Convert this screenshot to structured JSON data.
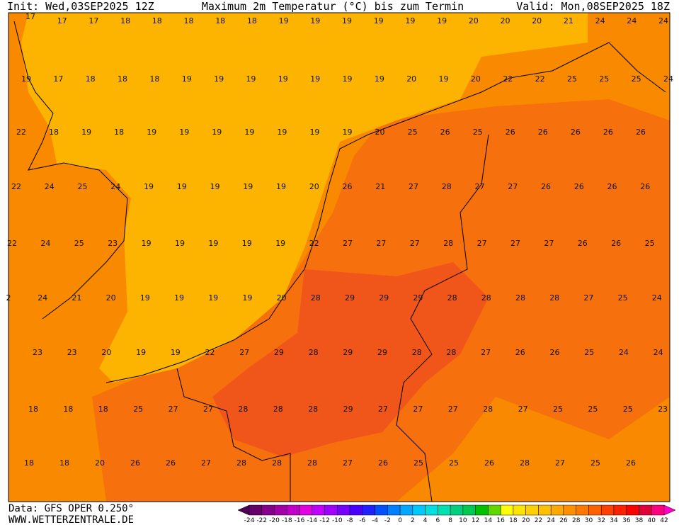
{
  "header": {
    "init": "Init: Wed,03SEP2025 12Z",
    "title": "Maximum 2m Temperatur (°C) bis zum Termin",
    "valid": "Valid: Mon,08SEP2025 18Z"
  },
  "grid": [
    [
      17,
      17,
      17,
      18,
      18,
      18,
      18,
      18,
      19,
      19,
      19,
      19,
      19,
      19,
      20,
      20,
      20,
      21,
      24,
      24,
      24
    ],
    [
      19,
      17,
      18,
      18,
      18,
      19,
      19,
      19,
      19,
      19,
      19,
      19,
      20,
      19,
      20,
      22,
      22,
      25,
      25,
      25,
      24
    ],
    [
      22,
      18,
      19,
      18,
      19,
      19,
      19,
      19,
      19,
      19,
      19,
      20,
      25,
      26,
      25,
      26,
      26,
      26,
      26,
      26
    ],
    [
      22,
      24,
      25,
      24,
      19,
      19,
      19,
      19,
      19,
      20,
      26,
      21,
      27,
      28,
      27,
      27,
      26,
      26,
      26,
      26
    ],
    [
      22,
      24,
      25,
      23,
      19,
      19,
      19,
      19,
      19,
      22,
      27,
      27,
      27,
      28,
      27,
      27,
      27,
      26,
      26,
      25
    ],
    [
      2,
      24,
      21,
      20,
      19,
      19,
      19,
      19,
      20,
      28,
      29,
      29,
      29,
      28,
      28,
      28,
      28,
      27,
      25,
      24
    ],
    [
      23,
      23,
      20,
      19,
      19,
      22,
      27,
      29,
      28,
      29,
      29,
      28,
      28,
      27,
      26,
      26,
      25,
      24,
      24
    ],
    [
      18,
      18,
      18,
      25,
      27,
      27,
      28,
      28,
      28,
      29,
      27,
      27,
      27,
      28,
      27,
      25,
      25,
      25,
      23
    ],
    [
      18,
      18,
      20,
      26,
      26,
      27,
      28,
      28,
      28,
      27,
      26,
      25,
      25,
      26,
      28,
      27,
      25,
      26
    ]
  ],
  "colorbar": {
    "labels": [
      -24,
      -22,
      -20,
      -18,
      -16,
      -14,
      -12,
      -10,
      -8,
      -6,
      -4,
      -2,
      0,
      2,
      4,
      6,
      8,
      10,
      12,
      14,
      16,
      18,
      20,
      22,
      24,
      26,
      28,
      30,
      32,
      34,
      36,
      38,
      40,
      42
    ],
    "colors": [
      "#4b0050",
      "#66006a",
      "#84008a",
      "#a000a5",
      "#c000c8",
      "#e000e0",
      "#c000ff",
      "#a000ff",
      "#7800ff",
      "#4a00ff",
      "#2020ff",
      "#0050ff",
      "#0080ff",
      "#00a8ff",
      "#00c8ff",
      "#00e0e0",
      "#00e0b0",
      "#00d080",
      "#00c850",
      "#00c000",
      "#60d800",
      "#ffff00",
      "#ffe400",
      "#ffd000",
      "#ffc000",
      "#ffa800",
      "#ff9000",
      "#ff7800",
      "#ff6000",
      "#ff4000",
      "#ff2000",
      "#ff0000",
      "#e0003a",
      "#ff0080",
      "#ff00c8"
    ]
  },
  "footer": {
    "source": "Data: GFS OPER 0.250°",
    "site": "WWW.WETTERZENTRALE.DE"
  }
}
